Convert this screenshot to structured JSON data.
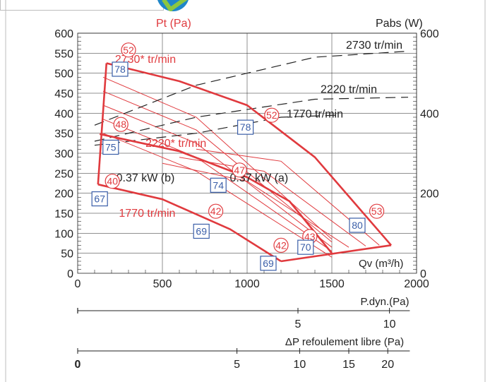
{
  "chart_data": {
    "type": "line",
    "axes": {
      "left": {
        "label": "Pt (Pa)",
        "ylim": [
          0,
          600
        ],
        "ticks": [
          0,
          50,
          100,
          150,
          200,
          250,
          300,
          350,
          400,
          450,
          500,
          550,
          600
        ]
      },
      "right": {
        "label": "Pabs (W)",
        "ylim": [
          0,
          600
        ],
        "ticks": [
          0,
          200,
          400,
          600
        ]
      },
      "bottom": {
        "label": "Qv (m³/h)",
        "xlim": [
          0,
          2000
        ],
        "ticks": [
          0,
          500,
          1000,
          1500,
          2000
        ]
      },
      "dynamic_pressure": {
        "label": "P.dyn.(Pa)",
        "ticks": [
          {
            "v": 5,
            "qv": 1300
          },
          {
            "v": 10,
            "qv": 1840
          }
        ]
      },
      "free_discharge": {
        "label": "ΔP refoulement libre (Pa)",
        "ticks": [
          {
            "v": "0",
            "qv": 0
          },
          {
            "v": "5",
            "qv": 940
          },
          {
            "v": "10",
            "qv": 1310
          },
          {
            "v": "15",
            "qv": 1600
          },
          {
            "v": "20",
            "qv": 1830
          }
        ]
      }
    },
    "grid": true,
    "speed_curves": [
      {
        "label": "2730* tr/min",
        "points": [
          [
            170,
            525
          ],
          [
            600,
            480
          ],
          [
            1000,
            420
          ],
          [
            1400,
            290
          ],
          [
            1850,
            70
          ]
        ]
      },
      {
        "label": "2220* tr/min",
        "points": [
          [
            130,
            348
          ],
          [
            600,
            305
          ],
          [
            1000,
            240
          ],
          [
            1250,
            180
          ],
          [
            1500,
            50
          ]
        ]
      },
      {
        "label": "1770 tr/min",
        "points": [
          [
            120,
            222
          ],
          [
            500,
            185
          ],
          [
            900,
            110
          ],
          [
            1200,
            30
          ]
        ]
      }
    ],
    "envelope": {
      "upper": [
        [
          170,
          525
        ],
        [
          600,
          480
        ],
        [
          1000,
          420
        ],
        [
          1400,
          290
        ],
        [
          1850,
          70
        ]
      ],
      "lower": [
        [
          120,
          222
        ],
        [
          500,
          185
        ],
        [
          900,
          110
        ],
        [
          1200,
          30
        ],
        [
          1850,
          70
        ]
      ]
    },
    "iso_lines": [
      [
        [
          150,
          490
        ],
        [
          700,
          390
        ],
        [
          1500,
          85
        ]
      ],
      [
        [
          150,
          455
        ],
        [
          700,
          358
        ],
        [
          1500,
          78
        ]
      ],
      [
        [
          150,
          420
        ],
        [
          700,
          325
        ],
        [
          1500,
          65
        ]
      ],
      [
        [
          150,
          385
        ],
        [
          700,
          290
        ],
        [
          1500,
          55
        ]
      ],
      [
        [
          150,
          350
        ],
        [
          700,
          255
        ],
        [
          1500,
          40
        ]
      ],
      [
        [
          500,
          275
        ],
        [
          1000,
          230
        ],
        [
          1600,
          65
        ]
      ],
      [
        [
          600,
          290
        ],
        [
          1100,
          255
        ],
        [
          1700,
          68
        ]
      ],
      [
        [
          700,
          310
        ],
        [
          1200,
          280
        ],
        [
          1780,
          70
        ]
      ]
    ],
    "power_curves": [
      {
        "label": "2730 tr/min",
        "points": [
          [
            100,
            370
          ],
          [
            700,
            470
          ],
          [
            1400,
            540
          ],
          [
            1950,
            555
          ]
        ]
      },
      {
        "label": "2220 tr/min",
        "points": [
          [
            100,
            330
          ],
          [
            700,
            390
          ],
          [
            1400,
            435
          ],
          [
            1950,
            440
          ]
        ]
      },
      {
        "label": "1770 tr/min",
        "points": [
          [
            100,
            320
          ],
          [
            700,
            350
          ],
          [
            1200,
            390
          ],
          [
            1520,
            395
          ]
        ]
      }
    ],
    "motor_labels": [
      {
        "text": "0.37 kW (b)",
        "x": 400,
        "y": 238
      },
      {
        "text": "0.37 kW (a)",
        "x": 1070,
        "y": 238
      }
    ],
    "sound_levels_red": [
      {
        "v": "52",
        "x": 300,
        "y": 558
      },
      {
        "v": "48",
        "x": 255,
        "y": 372
      },
      {
        "v": "40",
        "x": 205,
        "y": 230
      },
      {
        "v": "52",
        "x": 1145,
        "y": 395
      },
      {
        "v": "47",
        "x": 955,
        "y": 258
      },
      {
        "v": "42",
        "x": 815,
        "y": 155
      },
      {
        "v": "43",
        "x": 1370,
        "y": 92
      },
      {
        "v": "42",
        "x": 1200,
        "y": 70
      },
      {
        "v": "53",
        "x": 1765,
        "y": 155
      }
    ],
    "sound_levels_blue": [
      {
        "v": "78",
        "x": 250,
        "y": 510
      },
      {
        "v": "75",
        "x": 195,
        "y": 315
      },
      {
        "v": "67",
        "x": 130,
        "y": 186
      },
      {
        "v": "78",
        "x": 990,
        "y": 365
      },
      {
        "v": "74",
        "x": 830,
        "y": 220
      },
      {
        "v": "69",
        "x": 730,
        "y": 105
      },
      {
        "v": "70",
        "x": 1345,
        "y": 65
      },
      {
        "v": "69",
        "x": 1125,
        "y": 25
      },
      {
        "v": "80",
        "x": 1650,
        "y": 120
      }
    ],
    "speed_labels": [
      {
        "text": "2730* tr/min",
        "x": 400,
        "y": 535,
        "color": "#e03a3e"
      },
      {
        "text": "2220* tr/min",
        "x": 580,
        "y": 325,
        "color": "#e03a3e"
      },
      {
        "text": "1770 tr/min",
        "x": 410,
        "y": 150,
        "color": "#e03a3e"
      },
      {
        "text": "2730 tr/min",
        "x": 1750,
        "y": 570,
        "color": "#222222"
      },
      {
        "text": "2220 tr/min",
        "x": 1600,
        "y": 460,
        "color": "#222222"
      },
      {
        "text": "1770 tr/min",
        "x": 1400,
        "y": 398,
        "color": "#222222"
      }
    ]
  },
  "colors": {
    "accent": "#e03a3e",
    "blue": "#3a5ea8",
    "ink": "#222222",
    "grid": "#222222"
  }
}
